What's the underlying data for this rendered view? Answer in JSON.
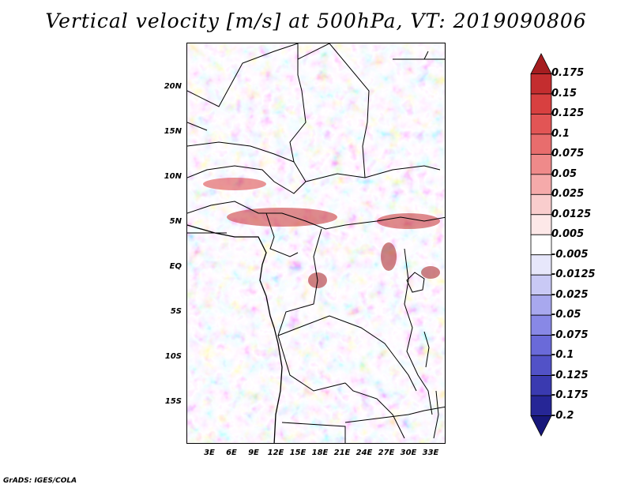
{
  "title": "Vertical velocity [m/s] at 500hPa, VT: 2019090806",
  "footer": "GrADS: IGES/COLA",
  "lat_labels": [
    "20N",
    "15N",
    "10N",
    "5N",
    "EQ",
    "5S",
    "10S",
    "15S"
  ],
  "lon_labels": [
    "3E",
    "6E",
    "9E",
    "12E",
    "15E",
    "18E",
    "21E",
    "24E",
    "27E",
    "30E",
    "33E"
  ],
  "colorbar": {
    "labels": [
      "0.175",
      "0.15",
      "0.125",
      "0.1",
      "0.075",
      "0.05",
      "0.025",
      "0.0125",
      "0.005",
      "-0.005",
      "-0.0125",
      "-0.025",
      "-0.05",
      "-0.075",
      "-0.1",
      "-0.125",
      "-0.175",
      "-0.2"
    ],
    "colors": [
      "#a51d20",
      "#c42d2f",
      "#d84040",
      "#e25555",
      "#e86d6d",
      "#ef8a8a",
      "#f5aaaa",
      "#f9cdcd",
      "#fde8e8",
      "#ffffff",
      "#e7e7fb",
      "#c9c9f5",
      "#a8a8ee",
      "#8888e6",
      "#6a6ad9",
      "#5252c7",
      "#3a3ab0",
      "#262696",
      "#17177a"
    ]
  },
  "colors": {
    "positive_accent": "#c42d2f",
    "negative_accent": "#4a4ad0"
  }
}
